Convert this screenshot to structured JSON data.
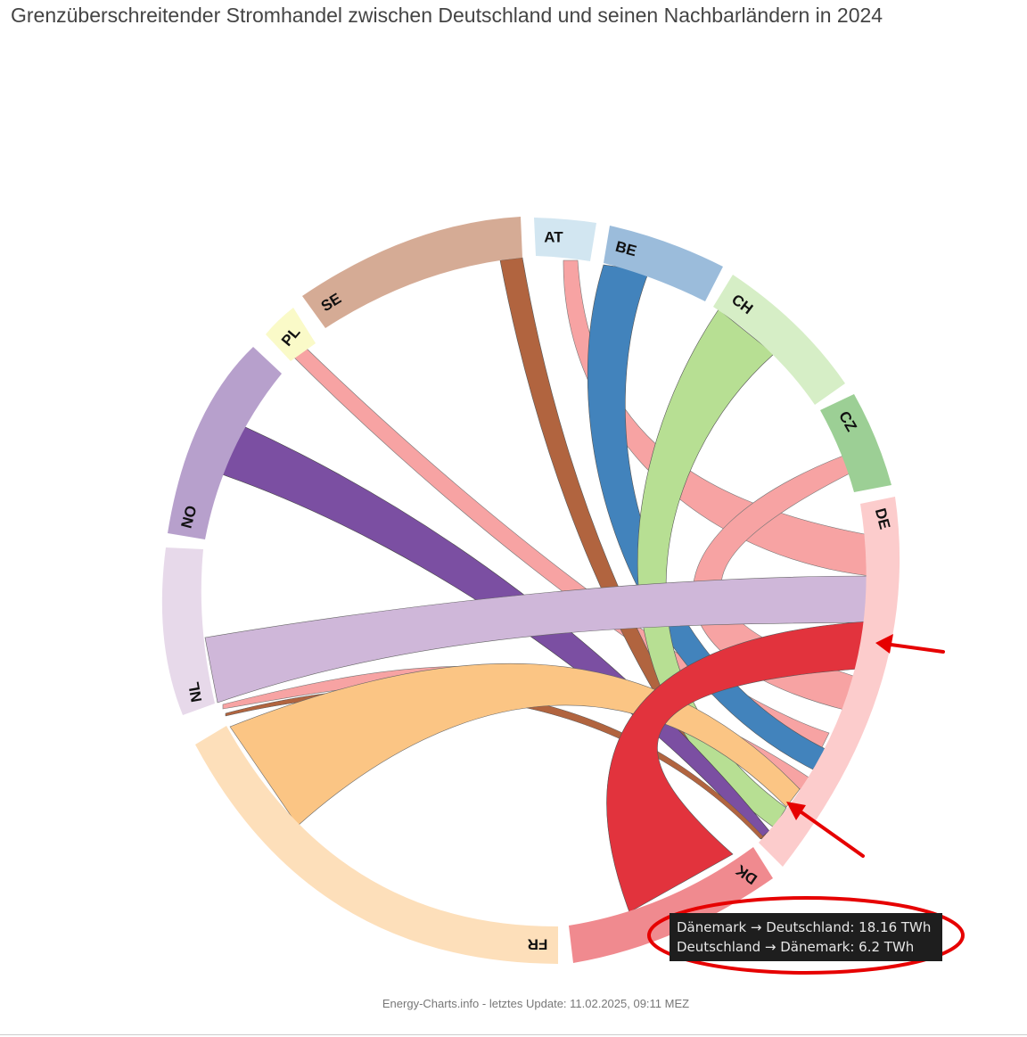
{
  "title": "Grenzüberschreitender Stromhandel zwischen Deutschland und seinen Nachbarländern in 2024",
  "footer": "Energy-Charts.info - letztes Update: 11.02.2025, 09:11 MEZ",
  "tooltip": {
    "line1": "Dänemark → Deutschland: 18.16 TWh",
    "line2": "Deutschland → Dänemark: 6.2 TWh"
  },
  "chart_data": {
    "type": "chord",
    "unit": "TWh",
    "groups": [
      {
        "id": "DE",
        "label": "DE",
        "color": "#fccccc"
      },
      {
        "id": "DK",
        "label": "DK",
        "color": "#f08a8f"
      },
      {
        "id": "FR",
        "label": "FR",
        "color": "#fddfba"
      },
      {
        "id": "NL",
        "label": "NL",
        "color": "#e7d9ea"
      },
      {
        "id": "NO",
        "label": "NO",
        "color": "#b7a0cc"
      },
      {
        "id": "PL",
        "label": "PL",
        "color": "#fafac8"
      },
      {
        "id": "SE",
        "label": "SE",
        "color": "#d5ab95"
      },
      {
        "id": "AT",
        "label": "AT",
        "color": "#d2e6f1"
      },
      {
        "id": "BE",
        "label": "BE",
        "color": "#9bbcdb"
      },
      {
        "id": "CH",
        "label": "CH",
        "color": "#d6eec6"
      },
      {
        "id": "CZ",
        "label": "CZ",
        "color": "#9ccf95"
      }
    ],
    "flows": [
      {
        "from": "DK",
        "to": "DE",
        "value": 18.16,
        "color": "#e2333d"
      },
      {
        "from": "DE",
        "to": "DK",
        "value": 6.2,
        "color": "#f08a8f"
      },
      {
        "from": "FR",
        "to": "DE",
        "value": 14.5,
        "color": "#fbc584"
      },
      {
        "from": "NL",
        "to": "DE",
        "value": 9.6,
        "color": "#cfb7d9"
      },
      {
        "from": "NO",
        "to": "DE",
        "value": 6.0,
        "color": "#7b4fa2"
      },
      {
        "from": "PL",
        "to": "DE",
        "value": 1.9,
        "color": "#f7a3a3"
      },
      {
        "from": "SE",
        "to": "DE",
        "value": 2.6,
        "color": "#b1643f"
      },
      {
        "from": "AT",
        "to": "DE",
        "value": 1.9,
        "color": "#f7a3a3"
      },
      {
        "from": "BE",
        "to": "DE",
        "value": 5.9,
        "color": "#4283bc"
      },
      {
        "from": "CH",
        "to": "DE",
        "value": 8.4,
        "color": "#b7df93"
      },
      {
        "from": "CZ",
        "to": "DE",
        "value": 3.4,
        "color": "#f7a3a3"
      }
    ]
  }
}
